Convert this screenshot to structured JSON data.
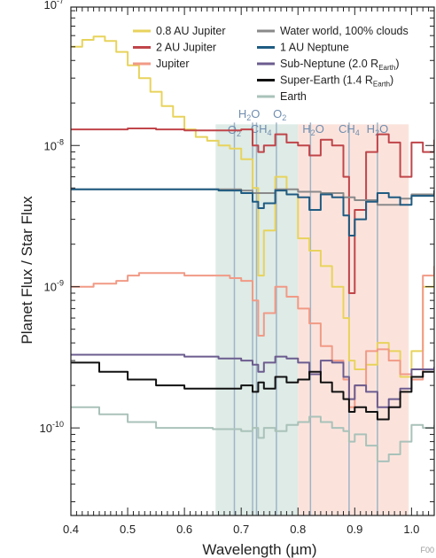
{
  "chart_data": {
    "type": "line",
    "xlabel": "Wavelength (µm)",
    "ylabel": "Planet Flux / Star Flux",
    "xlim": [
      0.4,
      1.04
    ],
    "ylim_log10": [
      -10.62,
      -7.02
    ],
    "y_scale": "log",
    "x_ticks": [
      "0.4",
      "0.5",
      "0.6",
      "0.7",
      "0.8",
      "0.9",
      "1.0"
    ],
    "y_ticks": [
      {
        "exp": -10,
        "label": "10-10"
      },
      {
        "exp": -9,
        "label": "10-9"
      },
      {
        "exp": -8,
        "label": "10-8"
      },
      {
        "exp": -7,
        "label": "10-7"
      }
    ],
    "bands": [
      {
        "from": 0.655,
        "to": 0.8,
        "color": "#deebe6"
      },
      {
        "from": 0.8,
        "to": 0.995,
        "color": "#fbe3dc"
      }
    ],
    "band_top_log10": -7.85,
    "features": [
      {
        "label": "O2",
        "x": 0.688
      },
      {
        "label": "H2O",
        "x": 0.72
      },
      {
        "label": "CH4",
        "x": 0.727
      },
      {
        "label": "O2",
        "x": 0.762
      },
      {
        "label": "H2O",
        "x": 0.822
      },
      {
        "label": "CH4",
        "x": 0.89
      },
      {
        "label": "H2O",
        "x": 0.94
      }
    ],
    "series": [
      {
        "name": "0.8 AU Jupiter",
        "color": "#e8d35c",
        "x": [
          0.4,
          0.42,
          0.44,
          0.46,
          0.48,
          0.5,
          0.52,
          0.54,
          0.56,
          0.58,
          0.6,
          0.62,
          0.64,
          0.66,
          0.68,
          0.7,
          0.72,
          0.73,
          0.74,
          0.76,
          0.78,
          0.8,
          0.82,
          0.84,
          0.86,
          0.88,
          0.89,
          0.9,
          0.92,
          0.94,
          0.96,
          0.98,
          1.0,
          1.02,
          1.04
        ],
        "y": [
          5e-08,
          5.6e-08,
          5.9e-08,
          5.5e-08,
          4.6e-08,
          3.7e-08,
          3e-08,
          2.4e-08,
          1.9e-08,
          1.6e-08,
          1.3e-08,
          1.15e-08,
          1.08e-08,
          1e-08,
          9.5e-09,
          8e-09,
          5e-09,
          1.2e-09,
          2.5e-09,
          6e-09,
          4.5e-09,
          2.2e-09,
          1.8e-09,
          1.4e-09,
          1e-09,
          6e-10,
          3e-10,
          2.6e-10,
          2.8e-10,
          4e-10,
          3.5e-10,
          2.3e-10,
          3.5e-10,
          1e-09,
          1.3e-09
        ]
      },
      {
        "name": "2 AU Jupiter",
        "color": "#c0454a",
        "x": [
          0.4,
          0.45,
          0.5,
          0.55,
          0.6,
          0.65,
          0.7,
          0.72,
          0.73,
          0.74,
          0.76,
          0.78,
          0.8,
          0.82,
          0.84,
          0.86,
          0.88,
          0.89,
          0.9,
          0.92,
          0.94,
          0.96,
          0.98,
          1.0,
          1.02,
          1.04
        ],
        "y": [
          1.3e-08,
          1.3e-08,
          1.32e-08,
          1.3e-08,
          1.28e-08,
          1.28e-08,
          1.3e-08,
          1e-08,
          9e-09,
          1e-08,
          1.2e-08,
          1.05e-08,
          1e-08,
          8.5e-09,
          1.1e-08,
          1e-08,
          6e-09,
          9e-10,
          3.5e-09,
          9e-09,
          1.2e-08,
          1.05e-08,
          6e-09,
          1.05e-08,
          9e-09,
          1.1e-08
        ]
      },
      {
        "name": "Jupiter",
        "color": "#f19a86",
        "x": [
          0.4,
          0.44,
          0.48,
          0.5,
          0.52,
          0.56,
          0.6,
          0.64,
          0.68,
          0.7,
          0.72,
          0.73,
          0.74,
          0.76,
          0.78,
          0.8,
          0.82,
          0.84,
          0.86,
          0.88,
          0.89,
          0.9,
          0.92,
          0.94,
          0.96,
          0.98,
          1.0,
          1.02,
          1.04
        ],
        "y": [
          1e-09,
          1.05e-09,
          1.1e-09,
          1.2e-09,
          1.25e-09,
          1.25e-09,
          1.2e-09,
          1.2e-09,
          1.15e-09,
          1.1e-09,
          8e-10,
          4.5e-10,
          6.5e-10,
          1e-09,
          8.5e-10,
          7e-10,
          5.5e-10,
          3.8e-10,
          3e-10,
          2.2e-10,
          1.4e-10,
          2e-10,
          3.5e-10,
          3.6e-10,
          3e-10,
          2.4e-10,
          2.2e-10,
          1.2e-09,
          1.4e-09
        ]
      },
      {
        "name": "Water world, 100% clouds",
        "color": "#8a8a8a",
        "x": [
          0.4,
          0.5,
          0.6,
          0.7,
          0.72,
          0.76,
          0.8,
          0.84,
          0.88,
          0.9,
          0.94,
          0.98,
          1.0,
          1.04
        ],
        "y": [
          4.9e-09,
          4.9e-09,
          4.9e-09,
          4.8e-09,
          4.6e-09,
          4.9e-09,
          4.7e-09,
          4.6e-09,
          4.3e-09,
          4.1e-09,
          3.8e-09,
          4.2e-09,
          4.5e-09,
          4.8e-09
        ]
      },
      {
        "name": "1 AU Neptune",
        "color": "#1f5b82",
        "x": [
          0.4,
          0.5,
          0.6,
          0.66,
          0.7,
          0.72,
          0.73,
          0.74,
          0.76,
          0.78,
          0.8,
          0.82,
          0.84,
          0.86,
          0.88,
          0.89,
          0.9,
          0.92,
          0.94,
          0.96,
          0.98,
          1.0,
          1.04
        ],
        "y": [
          4.9e-09,
          4.9e-09,
          4.9e-09,
          4.8e-09,
          4.6e-09,
          4e-09,
          3.6e-09,
          3.9e-09,
          4.8e-09,
          4.5e-09,
          4.3e-09,
          3.5e-09,
          4.5e-09,
          4.3e-09,
          3.2e-09,
          2.3e-09,
          3e-09,
          4e-09,
          4.6e-09,
          4.3e-09,
          3.8e-09,
          4.4e-09,
          4.8e-09
        ]
      },
      {
        "name": "Sub-Neptune (2.0 REarth)",
        "color": "#6c5c8f",
        "x": [
          0.4,
          0.5,
          0.6,
          0.66,
          0.7,
          0.72,
          0.73,
          0.74,
          0.76,
          0.78,
          0.8,
          0.82,
          0.84,
          0.86,
          0.88,
          0.89,
          0.9,
          0.92,
          0.94,
          0.96,
          0.98,
          1.0,
          1.04
        ],
        "y": [
          3.3e-10,
          3.3e-10,
          3.2e-10,
          3.1e-10,
          3e-10,
          2.8e-10,
          2.5e-10,
          2.9e-10,
          3.2e-10,
          3.1e-10,
          2.9e-10,
          2.4e-10,
          3e-10,
          2.9e-10,
          2.3e-10,
          1.6e-10,
          2e-10,
          1.8e-10,
          1.4e-10,
          1.6e-10,
          1.9e-10,
          2.6e-10,
          2.7e-10
        ]
      },
      {
        "name": "Super-Earth (1.4 REarth)",
        "color": "#111111",
        "x": [
          0.4,
          0.45,
          0.5,
          0.55,
          0.6,
          0.65,
          0.7,
          0.72,
          0.73,
          0.74,
          0.76,
          0.78,
          0.8,
          0.82,
          0.84,
          0.86,
          0.88,
          0.89,
          0.9,
          0.92,
          0.94,
          0.96,
          0.98,
          1.0,
          1.02,
          1.04
        ],
        "y": [
          2.9e-10,
          2.5e-10,
          2.2e-10,
          2e-10,
          1.9e-10,
          1.9e-10,
          2e-10,
          1.8e-10,
          2.1e-10,
          1.9e-10,
          2.3e-10,
          2.1e-10,
          2.2e-10,
          2.5e-10,
          2.1e-10,
          1.8e-10,
          1.6e-10,
          1.3e-10,
          1.4e-10,
          1.3e-10,
          1.15e-10,
          1.4e-10,
          1.8e-10,
          2.3e-10,
          2.5e-10,
          2.5e-10
        ]
      },
      {
        "name": "Earth",
        "color": "#a9c2b9",
        "x": [
          0.4,
          0.45,
          0.5,
          0.55,
          0.6,
          0.65,
          0.7,
          0.72,
          0.73,
          0.74,
          0.76,
          0.78,
          0.8,
          0.82,
          0.84,
          0.86,
          0.88,
          0.89,
          0.9,
          0.92,
          0.94,
          0.96,
          0.98,
          1.0,
          1.02,
          1.04
        ],
        "y": [
          1.4e-10,
          1.25e-10,
          1.1e-10,
          1e-10,
          1e-10,
          9.8e-11,
          9.5e-11,
          1e-10,
          8.5e-11,
          1e-10,
          9.5e-11,
          1.05e-10,
          1.1e-10,
          1.2e-10,
          1.1e-10,
          1e-10,
          9.5e-11,
          8e-11,
          9e-11,
          7.5e-11,
          5.8e-11,
          6.5e-11,
          8e-11,
          1.05e-10,
          1e-10,
          1.05e-10
        ]
      }
    ],
    "legend": {
      "position": "top",
      "entries": [
        {
          "label": "0.8 AU Jupiter",
          "color": "#e8d35c"
        },
        {
          "label": "2 AU Jupiter",
          "color": "#c0454a"
        },
        {
          "label": "Jupiter",
          "color": "#f19a86"
        },
        {
          "label": "Water world, 100% clouds",
          "color": "#8a8a8a"
        },
        {
          "label": "1 AU Neptune",
          "color": "#1f5b82"
        },
        {
          "label": "Sub-Neptune (2.0 R",
          "sub": "Earth",
          "tail": ")",
          "color": "#6c5c8f"
        },
        {
          "label": "Super-Earth (1.4 R",
          "sub": "Earth",
          "tail": ")",
          "color": "#111111"
        },
        {
          "label": "Earth",
          "color": "#a9c2b9"
        }
      ]
    }
  },
  "corner_code": "F00"
}
